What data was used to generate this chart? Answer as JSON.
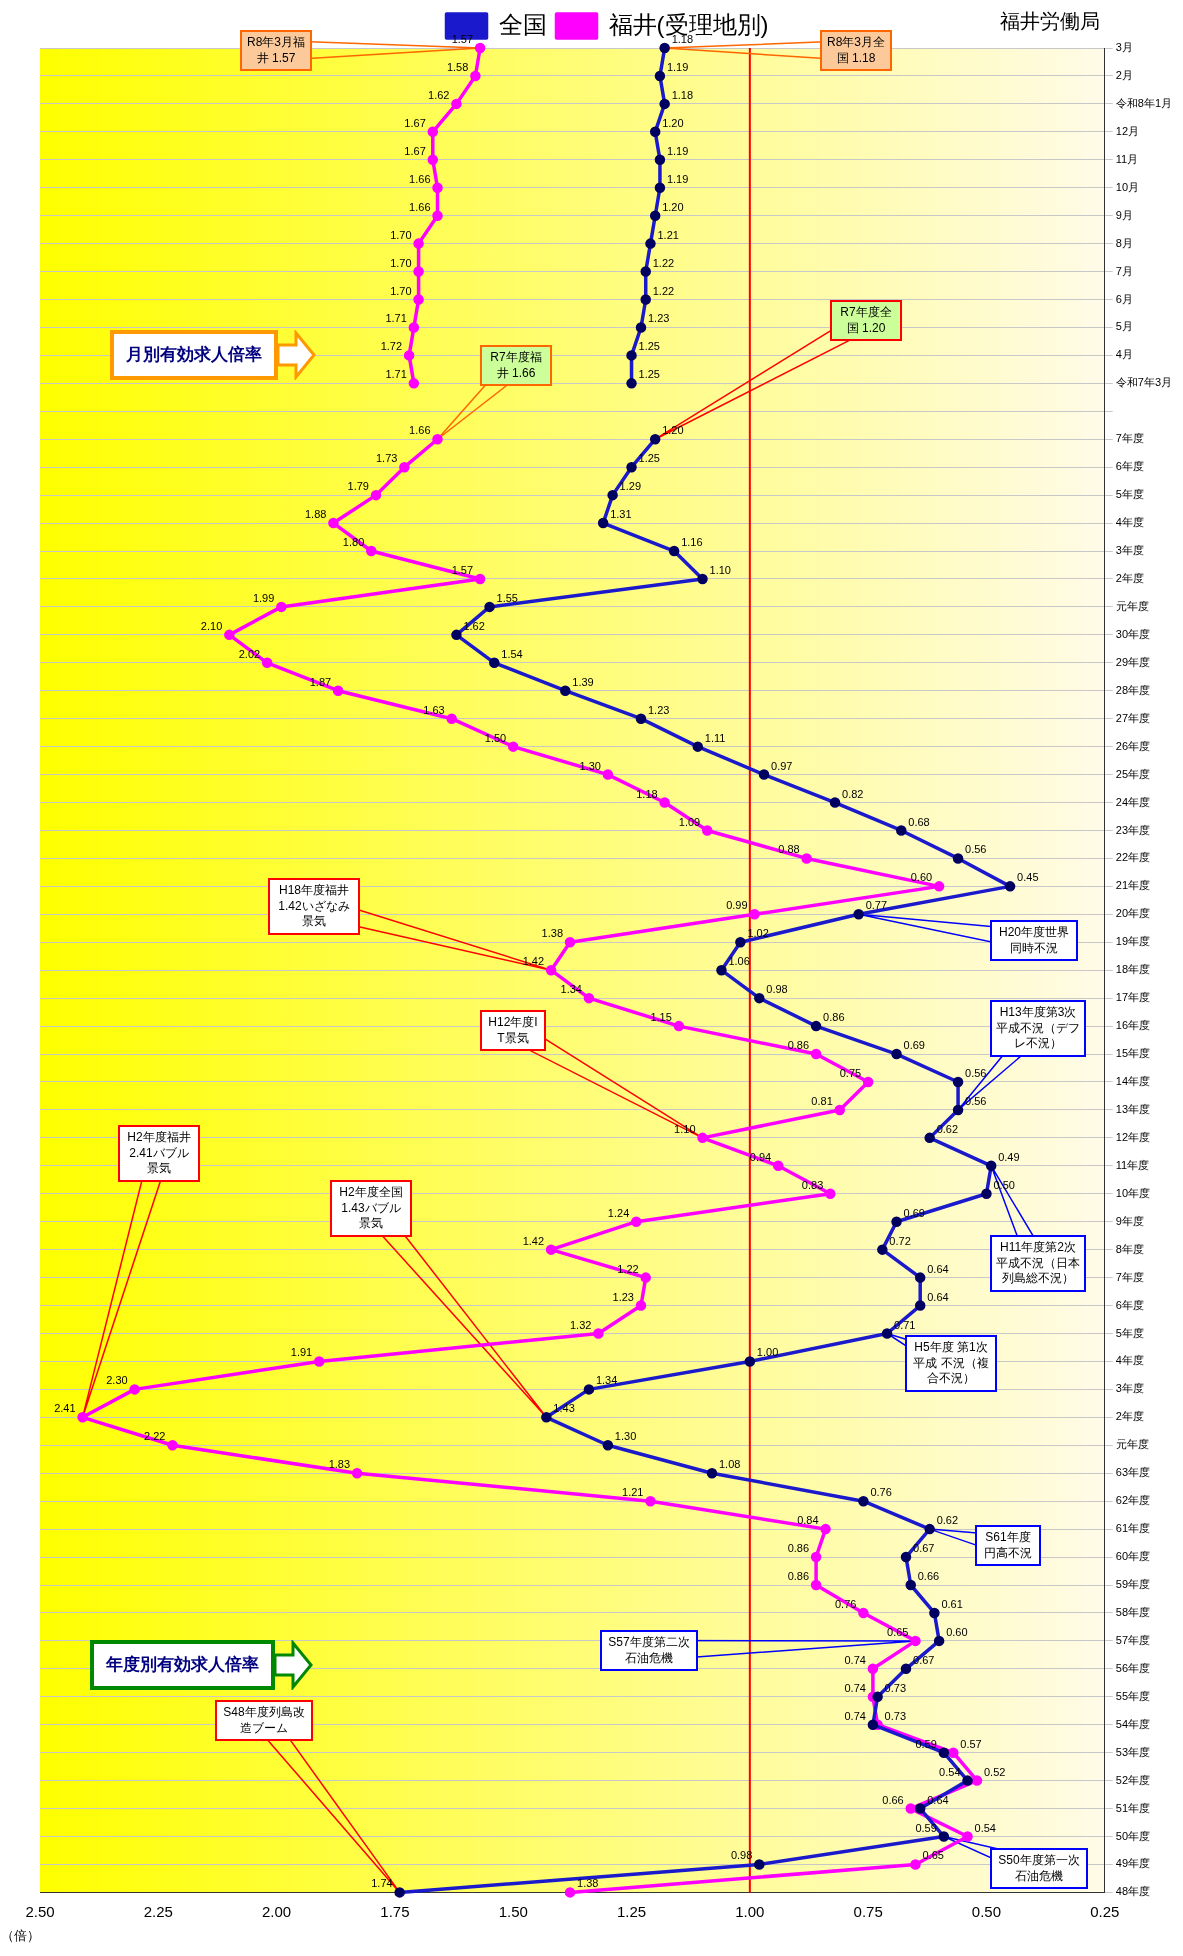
{
  "chart_data": {
    "type": "line",
    "orientation": "horizontal",
    "legend": "top",
    "marker": "circle",
    "grid": "y",
    "xlabel": "（倍）",
    "categories": [
      "3月",
      "2月",
      "令和8年1月",
      "12月",
      "11月",
      "10月",
      "9月",
      "8月",
      "7月",
      "6月",
      "5月",
      "4月",
      "令和7年3月",
      null,
      "7年度",
      "6年度",
      "5年度",
      "4年度",
      "3年度",
      "2年度",
      "元年度",
      "30年度",
      "29年度",
      "28年度",
      "27年度",
      "26年度",
      "25年度",
      "24年度",
      "23年度",
      "22年度",
      "21年度",
      "20年度",
      "19年度",
      "18年度",
      "17年度",
      "16年度",
      "15年度",
      "14年度",
      "13年度",
      "12年度",
      "11年度",
      "10年度",
      "9年度",
      "8年度",
      "7年度",
      "6年度",
      "5年度",
      "4年度",
      "3年度",
      "2年度",
      "元年度",
      "63年度",
      "62年度",
      "61年度",
      "60年度",
      "59年度",
      "58年度",
      "57年度",
      "56年度",
      "55年度",
      "54年度",
      "53年度",
      "52年度",
      "51年度",
      "50年度",
      "49年度",
      "48年度"
    ],
    "series": [
      {
        "name": "全国",
        "color": "#1a1acc",
        "values": [
          1.18,
          1.19,
          1.18,
          1.2,
          1.19,
          1.19,
          1.2,
          1.21,
          1.22,
          1.22,
          1.23,
          1.25,
          1.25,
          null,
          1.2,
          1.25,
          1.29,
          1.31,
          1.16,
          1.1,
          1.55,
          1.62,
          1.54,
          1.39,
          1.23,
          1.11,
          0.97,
          0.82,
          0.68,
          0.56,
          0.45,
          0.77,
          1.02,
          1.06,
          0.98,
          0.86,
          0.69,
          0.56,
          0.56,
          0.62,
          0.49,
          0.5,
          0.69,
          0.72,
          0.64,
          0.64,
          0.71,
          1.0,
          1.34,
          1.43,
          1.3,
          1.08,
          0.76,
          0.62,
          0.67,
          0.66,
          0.61,
          0.6,
          0.67,
          0.73,
          0.74,
          0.59,
          0.54,
          0.64,
          0.59,
          0.98,
          1.74
        ],
        "value_labels": [
          "1.18",
          "1.19",
          "1.18",
          "1.20",
          "1.19",
          "1.19",
          "1.20",
          "1.21",
          "1.22",
          "1.22",
          "1.23",
          "1.25",
          "1.25",
          null,
          "1.20",
          "1.25",
          "1.29",
          "1.31",
          "1.16",
          "1.10",
          "1.55",
          "1.62",
          "1.54",
          "1.39",
          "1.23",
          "1.11",
          "0.97",
          "0.82",
          "0.68",
          "0.56",
          "0.45",
          "0.77",
          "1.02",
          "1.06",
          "0.98",
          "0.86",
          "0.69",
          "0.56",
          "0.56",
          "0.62",
          "0.49",
          "0.50",
          "0.69",
          "0.72",
          "0.64",
          "0.64",
          "0.71",
          "1.00",
          "1.34",
          "1.43",
          "1.30",
          "1.08",
          "0.76",
          "0.62",
          "0.67",
          "0.66",
          "0.61",
          "0.60",
          "0.67",
          "0.73",
          "0.74",
          "0.59",
          "0.54",
          "0.64",
          "0.59",
          "0.98",
          "1.74"
        ]
      },
      {
        "name": "福井(受理地別)",
        "color": "#ff00ff",
        "values": [
          1.57,
          1.58,
          1.62,
          1.67,
          1.67,
          1.66,
          1.66,
          1.7,
          1.7,
          1.7,
          1.71,
          1.72,
          1.71,
          null,
          1.66,
          1.73,
          1.79,
          1.88,
          1.8,
          1.57,
          1.99,
          2.1,
          2.02,
          1.87,
          1.63,
          1.5,
          1.3,
          1.18,
          1.09,
          0.88,
          0.6,
          0.99,
          1.38,
          1.42,
          1.34,
          1.15,
          0.86,
          0.75,
          0.81,
          1.1,
          0.94,
          0.83,
          1.24,
          1.42,
          1.22,
          1.23,
          1.32,
          1.91,
          2.3,
          2.41,
          2.22,
          1.83,
          1.21,
          0.84,
          0.86,
          0.86,
          0.76,
          0.65,
          0.74,
          0.74,
          0.73,
          0.57,
          0.52,
          0.66,
          0.54,
          0.65,
          1.38
        ],
        "value_labels": [
          "1.57",
          "1.58",
          "1.62",
          "1.67",
          "1.67",
          "1.66",
          "1.66",
          "1.70",
          "1.70",
          "1.70",
          "1.71",
          "1.72",
          "1.71",
          null,
          "1.66",
          "1.73",
          "1.79",
          "1.88",
          "1.80",
          "1.57",
          "1.99",
          "2.10",
          "2.02",
          "1.87",
          "1.63",
          "1.50",
          "1.30",
          "1.18",
          "1.09",
          "0.88",
          "0.60",
          "0.99",
          "1.38",
          "1.42",
          "1.34",
          "1.15",
          "0.86",
          "0.75",
          "0.81",
          "1.10",
          "0.94",
          "0.83",
          "1.24",
          "1.42",
          "1.22",
          "1.23",
          "1.32",
          "1.91",
          "2.30",
          "2.41",
          "2.22",
          "1.83",
          "1.21",
          "0.84",
          "0.86",
          "0.86",
          "0.76",
          "0.65",
          "0.74",
          "0.74",
          "0.73",
          "0.57",
          "0.52",
          "0.66",
          "0.54",
          "0.65",
          "1.38"
        ]
      }
    ],
    "xlim": [
      2.5,
      0.25
    ],
    "xticks": [
      {
        "value": 2.5,
        "label": "2.50"
      },
      2.25,
      {
        "value": 2,
        "label": "2.00"
      },
      1.75,
      {
        "value": 1.5,
        "label": "1.50"
      },
      1.25,
      {
        "value": 1,
        "label": "1.00"
      },
      0.75,
      {
        "value": 0.5,
        "label": "0.50"
      },
      0.25
    ],
    "ref_lines": [
      {
        "axis": "x",
        "value": 1.0,
        "color": "#ff0000"
      }
    ],
    "annotations": [
      "S48年度列島改造ブーム",
      "S50年度第一次石油危機",
      "S57年度第二次石油危機",
      "S61年度円高不況",
      "H2年度福井 2.41バブル景気",
      "H2年度全国 1.43バブル景気",
      "H5年度 第1次平成 不況（複合不況）",
      "H11年度第2次平成不況（日本列島総不況）",
      "H12年度IT景気",
      "H13年度第3次平成不況（デフレ不況）",
      "H18年度福井 1.42いざなみ景気",
      "H20年度世界同時不況",
      "R7年度福井 1.66",
      "R7年度全国 1.20",
      "R8年3月福井 1.57",
      "R8年3月全国 1.18",
      "年度別有効求人倍率",
      "月別有効求人倍率",
      "福井労働局"
    ]
  }
}
